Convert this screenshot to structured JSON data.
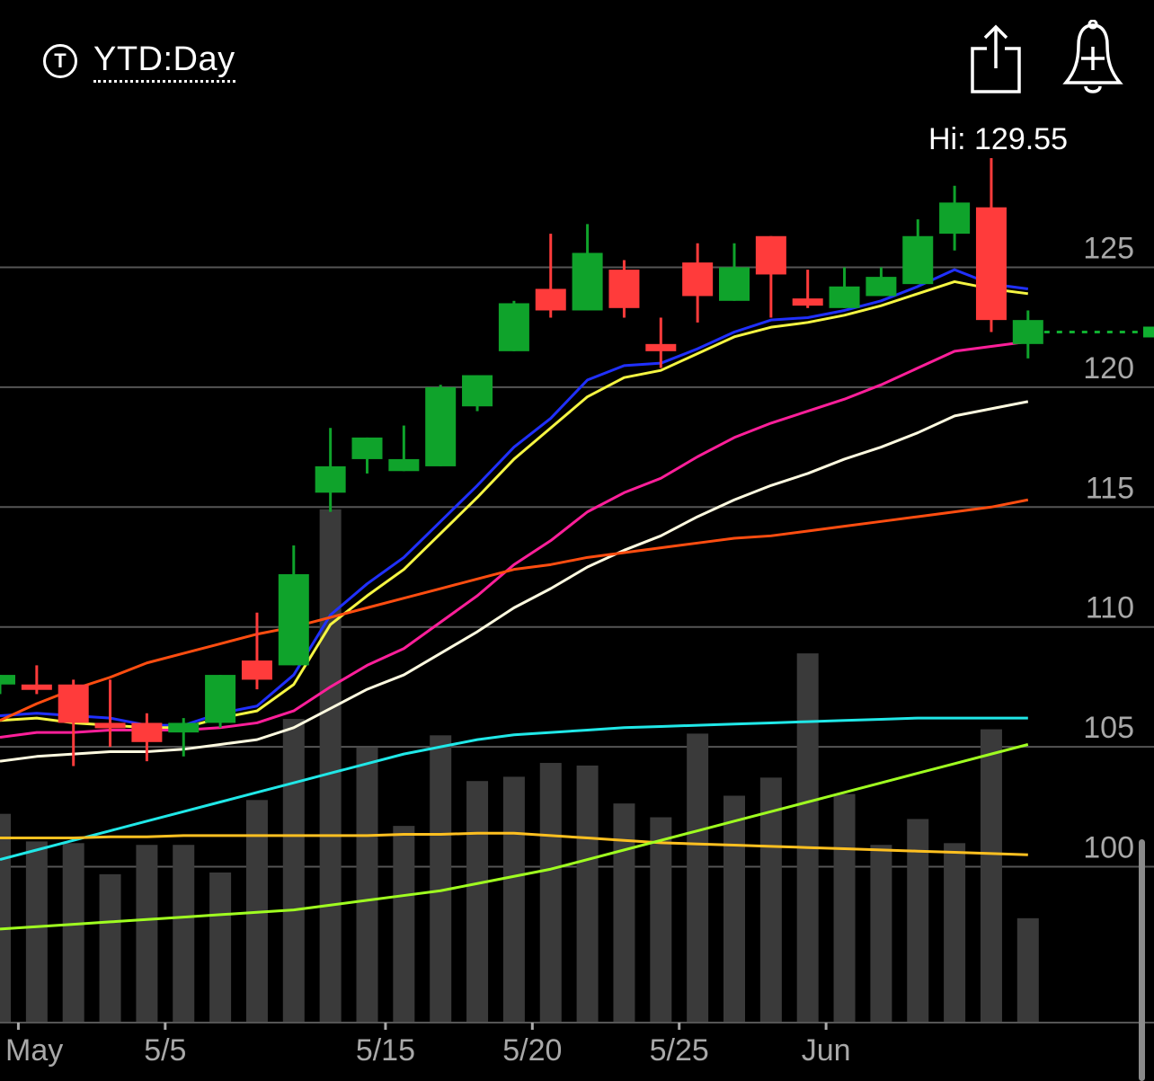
{
  "header": {
    "range_icon_letter": "T",
    "range_label": "YTD:Day",
    "share_icon": "share-icon",
    "alert_icon": "add-alert-bell-icon"
  },
  "hi_label": "Hi: 129.55",
  "colors": {
    "background": "#000000",
    "up": "#0fa32b",
    "down": "#ff3b3b",
    "volume": "#3a3a3a",
    "grid": "#555555",
    "last_price_line": "#10b030"
  },
  "chart_data": {
    "type": "candlestick",
    "y_axis": {
      "ticks": [
        100,
        105,
        110,
        115,
        120,
        125
      ],
      "ylim": [
        93.5,
        131.5
      ],
      "side": "right"
    },
    "x_axis": {
      "tick_labels": [
        "May",
        "5/5",
        "5/15",
        "5/20",
        "5/25",
        "Jun"
      ],
      "tick_index": [
        0.5,
        4.5,
        10.5,
        14.5,
        18.5,
        22.5
      ]
    },
    "last_price": 122.3,
    "candles": [
      {
        "o": 107.6,
        "h": 108.0,
        "l": 107.2,
        "c": 108.0
      },
      {
        "o": 107.6,
        "h": 108.4,
        "l": 107.2,
        "c": 107.4
      },
      {
        "o": 107.6,
        "h": 107.8,
        "l": 104.2,
        "c": 106.0
      },
      {
        "o": 106.0,
        "h": 107.8,
        "l": 105.0,
        "c": 105.8
      },
      {
        "o": 106.0,
        "h": 106.4,
        "l": 104.4,
        "c": 105.2
      },
      {
        "o": 105.6,
        "h": 106.2,
        "l": 104.6,
        "c": 106.0
      },
      {
        "o": 106.0,
        "h": 108.0,
        "l": 105.8,
        "c": 108.0
      },
      {
        "o": 108.6,
        "h": 110.6,
        "l": 107.4,
        "c": 107.8
      },
      {
        "o": 108.4,
        "h": 113.4,
        "l": 108.4,
        "c": 112.2
      },
      {
        "o": 115.6,
        "h": 118.3,
        "l": 114.8,
        "c": 116.7
      },
      {
        "o": 117.0,
        "h": 117.9,
        "l": 116.4,
        "c": 117.9
      },
      {
        "o": 116.5,
        "h": 118.4,
        "l": 116.5,
        "c": 117.0
      },
      {
        "o": 116.7,
        "h": 120.1,
        "l": 116.7,
        "c": 120.0
      },
      {
        "o": 119.2,
        "h": 120.5,
        "l": 119.0,
        "c": 120.5
      },
      {
        "o": 121.5,
        "h": 123.6,
        "l": 121.5,
        "c": 123.5
      },
      {
        "o": 124.1,
        "h": 126.4,
        "l": 122.9,
        "c": 123.2
      },
      {
        "o": 123.2,
        "h": 126.8,
        "l": 123.2,
        "c": 125.6
      },
      {
        "o": 124.9,
        "h": 125.3,
        "l": 122.9,
        "c": 123.3
      },
      {
        "o": 121.8,
        "h": 122.9,
        "l": 120.8,
        "c": 121.5
      },
      {
        "o": 125.2,
        "h": 126.0,
        "l": 122.7,
        "c": 123.8
      },
      {
        "o": 123.6,
        "h": 126.0,
        "l": 123.6,
        "c": 125.0
      },
      {
        "o": 126.3,
        "h": 126.3,
        "l": 122.9,
        "c": 124.7
      },
      {
        "o": 123.7,
        "h": 124.9,
        "l": 123.3,
        "c": 123.4
      },
      {
        "o": 123.3,
        "h": 125.0,
        "l": 123.3,
        "c": 124.2
      },
      {
        "o": 123.8,
        "h": 125.0,
        "l": 123.8,
        "c": 124.6
      },
      {
        "o": 124.3,
        "h": 127.0,
        "l": 124.3,
        "c": 126.3
      },
      {
        "o": 126.4,
        "h": 128.4,
        "l": 125.7,
        "c": 127.7
      },
      {
        "o": 127.5,
        "h": 129.55,
        "l": 122.3,
        "c": 122.8
      },
      {
        "o": 121.8,
        "h": 123.2,
        "l": 121.2,
        "c": 122.8
      }
    ],
    "volume": [
      24.2,
      21.0,
      20.8,
      17.2,
      20.6,
      20.6,
      17.4,
      25.8,
      35.2,
      59.5,
      31.9,
      22.8,
      33.3,
      28.0,
      28.5,
      30.1,
      29.8,
      25.4,
      23.8,
      33.5,
      26.3,
      28.4,
      42.8,
      26.5,
      20.6,
      23.6,
      20.8,
      34.0,
      12.1
    ],
    "moving_averages": [
      {
        "color": "#2030ff",
        "values": [
          106.3,
          106.4,
          106.3,
          106.2,
          105.9,
          105.9,
          106.4,
          106.7,
          108.0,
          110.5,
          111.8,
          112.9,
          114.4,
          115.9,
          117.5,
          118.7,
          120.3,
          120.9,
          121.0,
          121.6,
          122.3,
          122.8,
          122.9,
          123.2,
          123.6,
          124.2,
          124.9,
          124.3,
          124.1
        ]
      },
      {
        "color": "#f5f542",
        "values": [
          106.1,
          106.2,
          106.0,
          105.9,
          105.8,
          105.8,
          106.2,
          106.5,
          107.6,
          110.1,
          111.3,
          112.4,
          113.9,
          115.4,
          117.0,
          118.3,
          119.6,
          120.4,
          120.7,
          121.4,
          122.1,
          122.5,
          122.7,
          123.0,
          123.4,
          123.9,
          124.4,
          124.1,
          123.9
        ]
      },
      {
        "color": "#ff1f9a",
        "values": [
          105.4,
          105.6,
          105.6,
          105.7,
          105.7,
          105.7,
          105.8,
          106.0,
          106.5,
          107.5,
          108.4,
          109.1,
          110.2,
          111.3,
          112.6,
          113.6,
          114.8,
          115.6,
          116.2,
          117.1,
          117.9,
          118.5,
          119.0,
          119.5,
          120.1,
          120.8,
          121.5,
          121.7,
          121.9
        ]
      },
      {
        "color": "#fffbe0",
        "values": [
          104.4,
          104.6,
          104.7,
          104.8,
          104.8,
          104.9,
          105.1,
          105.3,
          105.8,
          106.6,
          107.4,
          108.0,
          108.9,
          109.8,
          110.8,
          111.6,
          112.5,
          113.2,
          113.8,
          114.6,
          115.3,
          115.9,
          116.4,
          117.0,
          117.5,
          118.1,
          118.8,
          119.1,
          119.4
        ]
      },
      {
        "color": "#ff4d10",
        "values": [
          106.1,
          106.8,
          107.4,
          107.9,
          108.5,
          108.9,
          109.3,
          109.7,
          110.0,
          110.4,
          110.8,
          111.2,
          111.6,
          112.0,
          112.4,
          112.6,
          112.9,
          113.1,
          113.3,
          113.5,
          113.7,
          113.8,
          114.0,
          114.2,
          114.4,
          114.6,
          114.8,
          115.0,
          115.3
        ]
      },
      {
        "color": "#20e8e8",
        "values": [
          100.3,
          100.7,
          101.1,
          101.5,
          101.9,
          102.3,
          102.7,
          103.1,
          103.5,
          103.9,
          104.3,
          104.7,
          105.0,
          105.3,
          105.5,
          105.6,
          105.7,
          105.8,
          105.85,
          105.9,
          105.95,
          106.0,
          106.05,
          106.1,
          106.15,
          106.2,
          106.2,
          106.2,
          106.2
        ]
      },
      {
        "color": "#ffc020",
        "values": [
          101.2,
          101.2,
          101.2,
          101.25,
          101.25,
          101.3,
          101.3,
          101.3,
          101.3,
          101.3,
          101.3,
          101.35,
          101.35,
          101.4,
          101.4,
          101.3,
          101.2,
          101.1,
          101.0,
          100.95,
          100.9,
          100.85,
          100.8,
          100.75,
          100.7,
          100.65,
          100.6,
          100.55,
          100.5
        ]
      },
      {
        "color": "#a0ff20",
        "values": [
          97.4,
          97.5,
          97.6,
          97.7,
          97.8,
          97.9,
          98.0,
          98.1,
          98.2,
          98.4,
          98.6,
          98.8,
          99.0,
          99.3,
          99.6,
          99.9,
          100.3,
          100.7,
          101.1,
          101.5,
          101.9,
          102.3,
          102.7,
          103.1,
          103.5,
          103.9,
          104.3,
          104.7,
          105.1
        ]
      }
    ]
  }
}
